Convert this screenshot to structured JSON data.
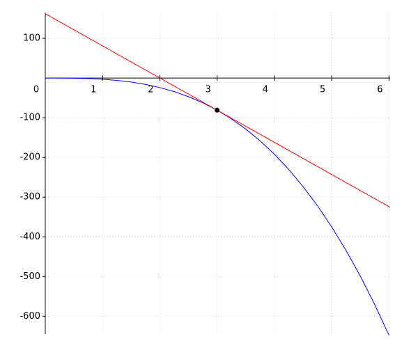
{
  "chart_data": {
    "type": "line",
    "xlim": [
      0,
      6.02
    ],
    "ylim": [
      -645,
      165
    ],
    "xticks": [
      0,
      1,
      2,
      3,
      4,
      5,
      6
    ],
    "yticks": [
      -600,
      -500,
      -400,
      -300,
      -200,
      -100,
      100
    ],
    "grid": true,
    "series": [
      {
        "color": "#0000ff",
        "x": [
          0,
          0.25,
          0.5,
          0.75,
          1,
          1.25,
          1.5,
          1.75,
          2,
          2.25,
          2.5,
          2.75,
          3,
          3.25,
          3.5,
          3.75,
          4,
          4.25,
          4.5,
          4.75,
          5,
          5.25,
          5.5,
          5.75,
          6
        ],
        "values": [
          0,
          -0.05,
          -0.4,
          -1.3,
          -3,
          -5.9,
          -10.1,
          -16.1,
          -24,
          -34.2,
          -46.9,
          -62.4,
          -81,
          -103,
          -128.6,
          -158.2,
          -192,
          -230.3,
          -273.4,
          -321.5,
          -375,
          -434.1,
          -499.1,
          -570.3,
          -648
        ]
      },
      {
        "color": "#ff0000",
        "x": [
          0,
          6.02
        ],
        "values": [
          162,
          -325.6
        ]
      },
      {
        "color": "#000000",
        "type": "scatter",
        "x": [
          3
        ],
        "values": [
          -81
        ]
      }
    ]
  }
}
